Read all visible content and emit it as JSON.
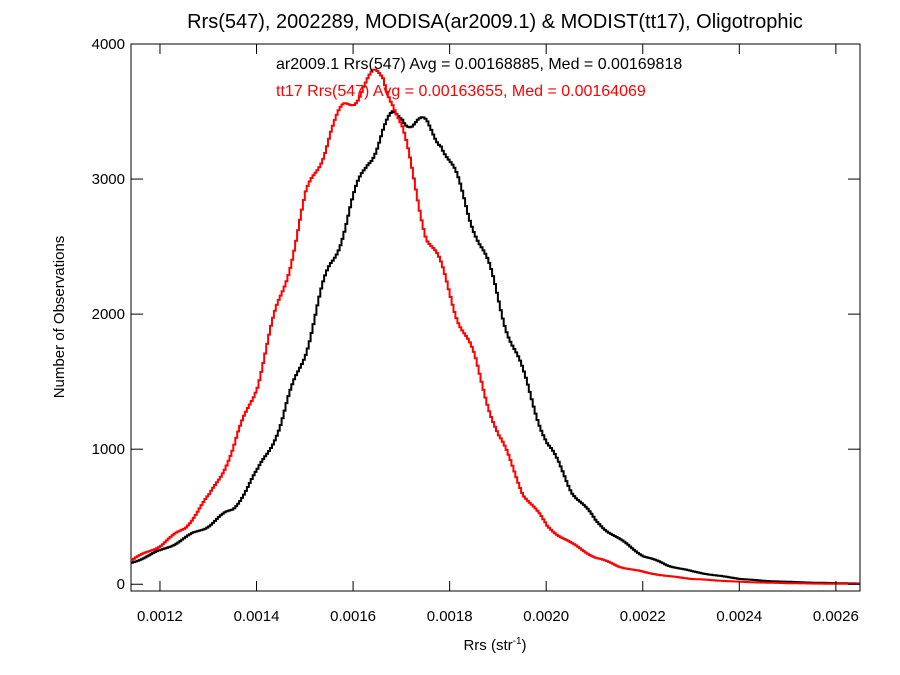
{
  "chart_data": {
    "type": "line",
    "title": "Rrs(547), 2002289, MODISA(ar2009.1) & MODIST(tt17), Oligotrophic",
    "xlabel_main": "Rrs (str",
    "xlabel_sup": "-1",
    "xlabel_close": ")",
    "ylabel": "Number of Observations",
    "xlim": [
      0.00114,
      0.00265
    ],
    "ylim": [
      -50,
      4000
    ],
    "xticks": [
      0.0012,
      0.0014,
      0.0016,
      0.0018,
      0.002,
      0.0022,
      0.0024,
      0.0026
    ],
    "xtick_labels": [
      "0.0012",
      "0.0014",
      "0.0016",
      "0.0018",
      "0.0020",
      "0.0022",
      "0.0024",
      "0.0026"
    ],
    "yticks": [
      0,
      1000,
      2000,
      3000,
      4000
    ],
    "ytick_labels": [
      "0",
      "1000",
      "2000",
      "3000",
      "4000"
    ],
    "grid": false,
    "annotations": [
      {
        "text": "ar2009.1 Rrs(547) Avg = 0.00168885, Med = 0.00169818",
        "color": "#000000"
      },
      {
        "text": "tt17 Rrs(547) Avg = 0.00163655, Med = 0.00164069",
        "color": "#ff0000"
      }
    ],
    "series": [
      {
        "color": "#000000",
        "x": [
          0.00114,
          0.0012,
          0.00125,
          0.0013,
          0.00135,
          0.0014,
          0.00145,
          0.0015,
          0.00155,
          0.0016,
          0.00163,
          0.00166,
          0.00168,
          0.0017,
          0.00172,
          0.00175,
          0.00178,
          0.0018,
          0.00185,
          0.0019,
          0.00195,
          0.002,
          0.00205,
          0.0021,
          0.00215,
          0.0022,
          0.00225,
          0.0023,
          0.00235,
          0.0024,
          0.00245,
          0.0025,
          0.00255,
          0.0026,
          0.00265
        ],
        "y": [
          160,
          250,
          340,
          440,
          560,
          830,
          1200,
          1750,
          2350,
          2850,
          3150,
          3350,
          3450,
          3480,
          3420,
          3390,
          3300,
          3100,
          2650,
          2100,
          1550,
          1050,
          700,
          470,
          330,
          210,
          140,
          95,
          65,
          40,
          25,
          18,
          12,
          8,
          5
        ]
      },
      {
        "color": "#ff0000",
        "x": [
          0.00114,
          0.0012,
          0.00125,
          0.0013,
          0.00135,
          0.0014,
          0.00145,
          0.0015,
          0.00155,
          0.00158,
          0.0016,
          0.00162,
          0.00164,
          0.00166,
          0.00168,
          0.0017,
          0.00172,
          0.00175,
          0.0018,
          0.00185,
          0.0019,
          0.00195,
          0.002,
          0.00205,
          0.0021,
          0.00215,
          0.0022,
          0.00225,
          0.0023,
          0.00235,
          0.0024,
          0.00245,
          0.0025,
          0.00255,
          0.0026,
          0.00265
        ],
        "y": [
          180,
          290,
          420,
          650,
          1000,
          1500,
          2150,
          2850,
          3350,
          3520,
          3600,
          3700,
          3750,
          3760,
          3600,
          3350,
          3050,
          2600,
          2150,
          1650,
          1100,
          680,
          430,
          300,
          200,
          130,
          90,
          60,
          40,
          28,
          18,
          12,
          8,
          5,
          4,
          3
        ]
      }
    ]
  }
}
